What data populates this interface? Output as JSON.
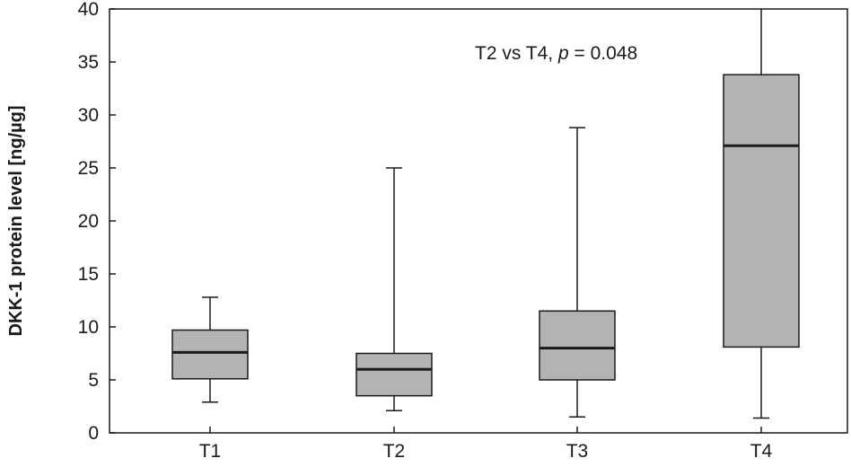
{
  "chart_data": {
    "type": "boxplot",
    "title": "",
    "xlabel": "",
    "ylabel": "DKK-1 protein level [ng/µg]",
    "ylim": [
      0,
      40
    ],
    "yticks": [
      0,
      5,
      10,
      15,
      20,
      25,
      30,
      35,
      40
    ],
    "grid": false,
    "categories": [
      "T1",
      "T2",
      "T3",
      "T4"
    ],
    "boxes": [
      {
        "category": "T1",
        "min": 2.9,
        "q1": 5.1,
        "median": 7.6,
        "q3": 9.7,
        "max": 12.8
      },
      {
        "category": "T2",
        "min": 2.1,
        "q1": 3.5,
        "median": 6.0,
        "q3": 7.5,
        "max": 25.0
      },
      {
        "category": "T3",
        "min": 1.5,
        "q1": 5.0,
        "median": 8.0,
        "q3": 11.5,
        "max": 28.8
      },
      {
        "category": "T4",
        "min": 1.4,
        "q1": 8.1,
        "median": 27.1,
        "q3": 33.8,
        "max": 40.0
      }
    ],
    "annotation": {
      "prefix": "T2 vs T4, ",
      "p_symbol": "p",
      "suffix": " = 0.048"
    },
    "colors": {
      "box_fill": "#b3b3b3",
      "stroke": "#1a1a1a",
      "background": "#ffffff"
    }
  }
}
